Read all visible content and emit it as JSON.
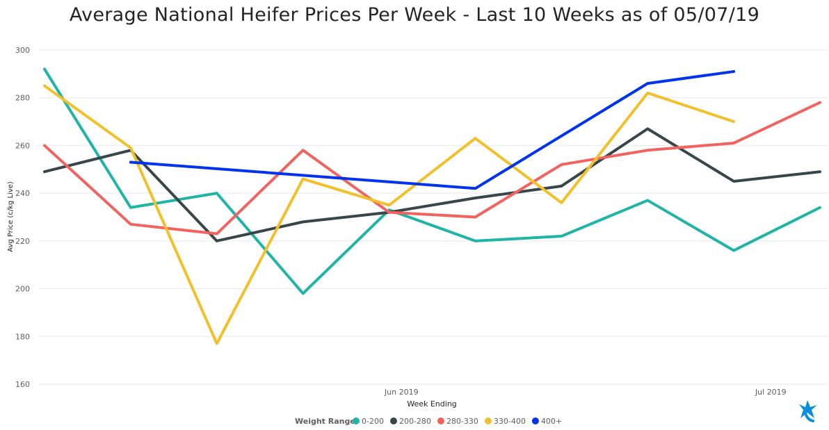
{
  "chart_data": {
    "type": "line",
    "title": "Average National Heifer Prices Per Week - Last 10 Weeks as of 05/07/19",
    "xlabel": "Week Ending",
    "ylabel": "Avg Price (c/kg Live)",
    "x_ticks": [
      "Jun 2019",
      "Jul 2019"
    ],
    "y_ticks": [
      160,
      180,
      200,
      220,
      240,
      260,
      280,
      300
    ],
    "ylim": [
      160,
      300
    ],
    "x": [
      "2019-05-03",
      "2019-05-10",
      "2019-05-17",
      "2019-05-24",
      "2019-05-31",
      "2019-06-07",
      "2019-06-14",
      "2019-06-21",
      "2019-06-28",
      "2019-07-05"
    ],
    "grid": true,
    "legend_title": "Weight Range",
    "legend_position": "bottom",
    "series": [
      {
        "name": "0-200",
        "color": "#1fb5a6",
        "values": [
          292,
          234,
          240,
          198,
          233,
          220,
          222,
          237,
          216,
          234
        ]
      },
      {
        "name": "200-280",
        "color": "#374649",
        "values": [
          249,
          258,
          220,
          228,
          232,
          238,
          243,
          267,
          245,
          249
        ]
      },
      {
        "name": "280-330",
        "color": "#f2625f",
        "values": [
          260,
          227,
          223,
          258,
          232,
          230,
          252,
          258,
          261,
          278
        ]
      },
      {
        "name": "330-400",
        "color": "#f2c02a",
        "values": [
          285,
          259,
          177,
          246,
          235,
          263,
          236,
          282,
          270,
          null
        ]
      },
      {
        "name": "400+",
        "color": "#0033ee",
        "values": [
          null,
          253,
          null,
          null,
          null,
          242,
          null,
          286,
          291,
          null
        ]
      }
    ]
  }
}
